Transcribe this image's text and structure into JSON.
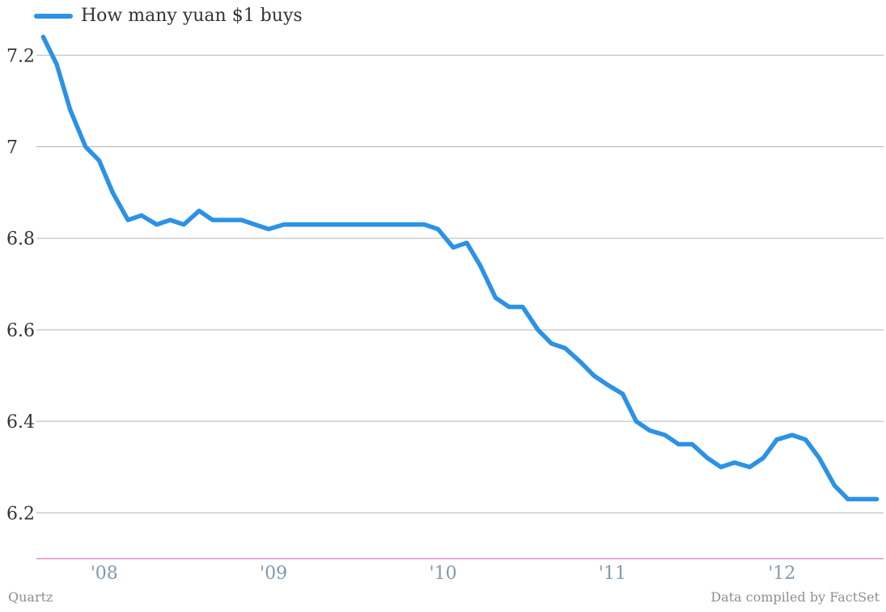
{
  "chart_data": {
    "type": "line",
    "title": "",
    "xlabel": "",
    "ylabel": "",
    "x_tick_labels": [
      "'08",
      "'09",
      "'10",
      "'11",
      "'12"
    ],
    "y_tick_labels": [
      "6.2",
      "6.4",
      "6.6",
      "6.8",
      "7",
      "7.2"
    ],
    "ylim": [
      6.1,
      7.25
    ],
    "xlim": [
      2007.6,
      2012.6
    ],
    "grid": true,
    "legend_position": "top-left",
    "series": [
      {
        "name": "How many yuan $1 buys",
        "color": "#2b92e6",
        "x": [
          2007.64,
          2007.72,
          2007.8,
          2007.89,
          2007.97,
          2008.05,
          2008.14,
          2008.22,
          2008.31,
          2008.39,
          2008.47,
          2008.56,
          2008.64,
          2008.72,
          2008.81,
          2008.89,
          2008.97,
          2009.06,
          2009.14,
          2009.22,
          2009.31,
          2009.39,
          2009.47,
          2009.56,
          2009.64,
          2009.72,
          2009.81,
          2009.89,
          2009.97,
          2010.06,
          2010.14,
          2010.22,
          2010.31,
          2010.39,
          2010.47,
          2010.56,
          2010.64,
          2010.72,
          2010.81,
          2010.89,
          2010.97,
          2011.06,
          2011.14,
          2011.22,
          2011.31,
          2011.39,
          2011.47,
          2011.56,
          2011.64,
          2011.72,
          2011.81,
          2011.89,
          2011.97,
          2012.06,
          2012.14,
          2012.22,
          2012.31,
          2012.39,
          2012.47,
          2012.56
        ],
        "values": [
          7.24,
          7.18,
          7.08,
          7.0,
          6.97,
          6.9,
          6.84,
          6.85,
          6.83,
          6.84,
          6.83,
          6.86,
          6.84,
          6.84,
          6.84,
          6.83,
          6.82,
          6.83,
          6.83,
          6.83,
          6.83,
          6.83,
          6.83,
          6.83,
          6.83,
          6.83,
          6.83,
          6.83,
          6.82,
          6.78,
          6.79,
          6.74,
          6.67,
          6.65,
          6.65,
          6.6,
          6.57,
          6.56,
          6.53,
          6.5,
          6.48,
          6.46,
          6.4,
          6.38,
          6.37,
          6.35,
          6.35,
          6.32,
          6.3,
          6.31,
          6.3,
          6.32,
          6.36,
          6.37,
          6.36,
          6.32,
          6.26,
          6.23,
          6.23,
          6.23
        ]
      }
    ]
  },
  "footer": {
    "source_left": "Quartz",
    "source_right": "Data compiled by FactSet"
  },
  "style": {
    "grid_color": "#b5b5b5",
    "axis_color": "#d85aa5",
    "ytick_color": "#333333",
    "xtick_color": "#7f99b5",
    "footer_color": "#8f8f8f",
    "background": "#ffffff"
  }
}
